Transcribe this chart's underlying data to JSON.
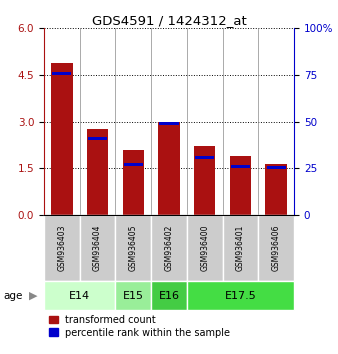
{
  "title": "GDS4591 / 1424312_at",
  "samples": [
    "GSM936403",
    "GSM936404",
    "GSM936405",
    "GSM936402",
    "GSM936400",
    "GSM936401",
    "GSM936406"
  ],
  "red_values": [
    4.9,
    2.75,
    2.1,
    3.0,
    2.2,
    1.9,
    1.65
  ],
  "blue_values": [
    4.55,
    2.45,
    1.62,
    2.93,
    1.85,
    1.55,
    1.52
  ],
  "ylim_left": [
    0,
    6
  ],
  "ylim_right": [
    0,
    100
  ],
  "yticks_left": [
    0,
    1.5,
    3,
    4.5,
    6
  ],
  "yticks_right": [
    0,
    25,
    50,
    75,
    100
  ],
  "age_groups": [
    {
      "label": "E14",
      "cols": [
        0,
        1
      ],
      "color": "#ccffcc"
    },
    {
      "label": "E15",
      "cols": [
        2
      ],
      "color": "#99ee99"
    },
    {
      "label": "E16",
      "cols": [
        3
      ],
      "color": "#44cc44"
    },
    {
      "label": "E17.5",
      "cols": [
        4,
        5,
        6
      ],
      "color": "#44dd44"
    }
  ],
  "bar_color": "#aa1111",
  "blue_color": "#0000cc",
  "sample_box_color": "#cccccc",
  "legend_red_label": "transformed count",
  "legend_blue_label": "percentile rank within the sample",
  "age_label": "age"
}
